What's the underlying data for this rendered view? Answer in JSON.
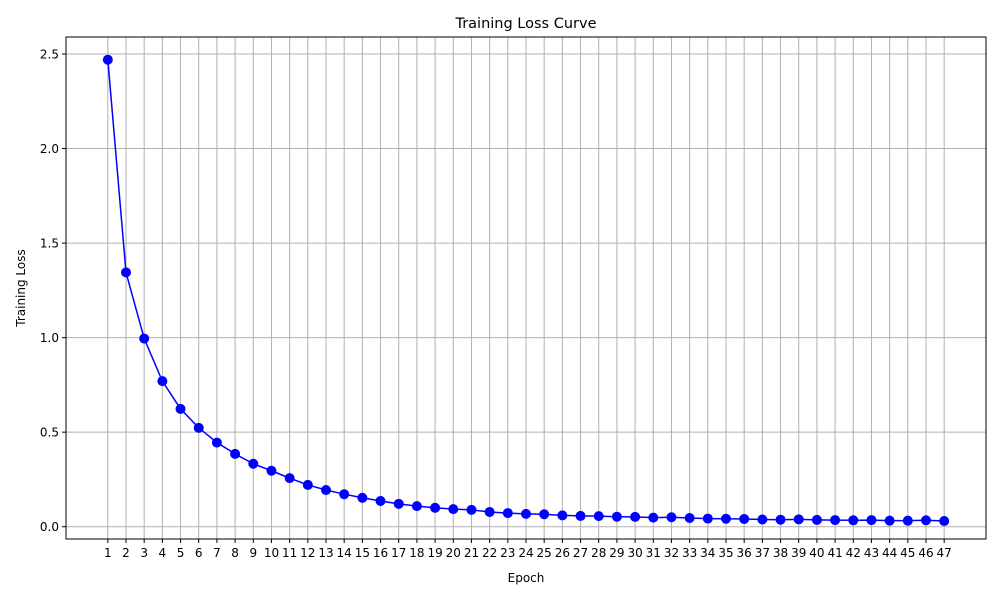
{
  "chart_data": {
    "type": "line",
    "title": "Training Loss Curve",
    "xlabel": "Epoch",
    "ylabel": "Training Loss",
    "x": [
      1,
      2,
      3,
      4,
      5,
      6,
      7,
      8,
      9,
      10,
      11,
      12,
      13,
      14,
      15,
      16,
      17,
      18,
      19,
      20,
      21,
      22,
      23,
      24,
      25,
      26,
      27,
      28,
      29,
      30,
      31,
      32,
      33,
      34,
      35,
      36,
      37,
      38,
      39,
      40,
      41,
      42,
      43,
      44,
      45,
      46,
      47
    ],
    "xticks": [
      "1",
      "2",
      "3",
      "4",
      "5",
      "6",
      "7",
      "8",
      "9",
      "10",
      "11",
      "12",
      "13",
      "14",
      "15",
      "16",
      "17",
      "18",
      "19",
      "20",
      "21",
      "22",
      "23",
      "24",
      "25",
      "26",
      "27",
      "28",
      "29",
      "30",
      "31",
      "32",
      "33",
      "34",
      "35",
      "36",
      "37",
      "38",
      "39",
      "40",
      "41",
      "42",
      "43",
      "44",
      "45",
      "46",
      "47"
    ],
    "series": [
      {
        "values": [
          2.47,
          1.345,
          0.995,
          0.77,
          0.623,
          0.523,
          0.445,
          0.385,
          0.333,
          0.296,
          0.257,
          0.221,
          0.194,
          0.172,
          0.153,
          0.136,
          0.121,
          0.109,
          0.1,
          0.093,
          0.089,
          0.078,
          0.072,
          0.068,
          0.066,
          0.06,
          0.057,
          0.056,
          0.053,
          0.052,
          0.048,
          0.05,
          0.046,
          0.043,
          0.042,
          0.041,
          0.038,
          0.037,
          0.039,
          0.036,
          0.035,
          0.034,
          0.035,
          0.032,
          0.032,
          0.034,
          0.03
        ],
        "color": "#0000ff",
        "marker": "circle"
      }
    ],
    "ylim": [
      -0.065,
      2.59
    ],
    "yticks": [
      "0.0",
      "0.5",
      "1.0",
      "1.5",
      "2.0",
      "2.5"
    ],
    "ytick_values": [
      0,
      0.5,
      1.0,
      1.5,
      2.0,
      2.5
    ],
    "xlim": [
      -1.3,
      49.3
    ],
    "grid": true,
    "grid_color": "#b0b0b0",
    "axis_color": "#000000"
  }
}
